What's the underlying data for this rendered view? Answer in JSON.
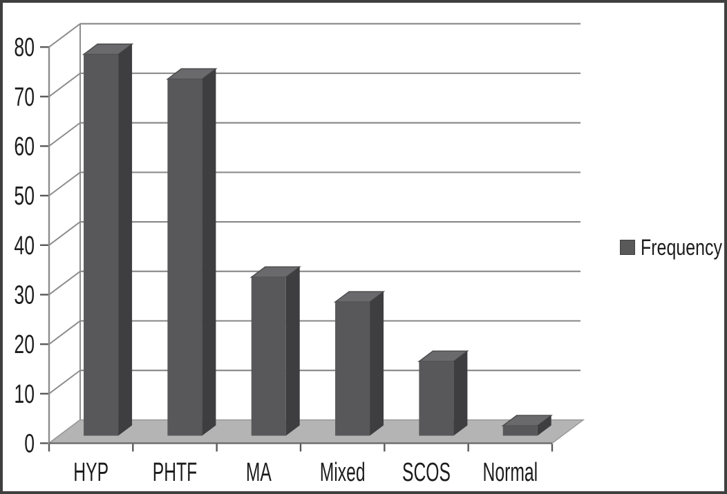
{
  "chart_data": {
    "type": "bar",
    "variant": "3d-column",
    "title": "",
    "xlabel": "",
    "ylabel": "",
    "categories": [
      "HYP",
      "PHTF",
      "MA",
      "Mixed",
      "SCOS",
      "Normal"
    ],
    "series": [
      {
        "name": "Frequency",
        "values": [
          77,
          72,
          32,
          27,
          15,
          2
        ]
      }
    ],
    "ylim": [
      0,
      80
    ],
    "yticks": [
      0,
      10,
      20,
      30,
      40,
      50,
      60,
      70,
      80
    ],
    "grid": true,
    "legend_position": "right"
  },
  "legend": {
    "label": "Frequency",
    "marker": "square-icon"
  },
  "colors": {
    "background": "#FFFFFF",
    "frame_border": "#3F3F3F",
    "bar_front": "#58585A",
    "bar_top": "#6A6A6C",
    "bar_top_edge": "#4C4C4E",
    "bar_side": "#3E3E40",
    "floor": "#B4B4B4",
    "floor_edge": "#9A9A9A",
    "floor_front_edge": "#6E6E6E",
    "gridline": "#8C8C8C",
    "axis_line": "#8C8C8C",
    "tick_mark": "#595959",
    "text": "#1C1C1C",
    "legend_marker": "#595959",
    "legend_marker_border": "#3F3F3F"
  }
}
